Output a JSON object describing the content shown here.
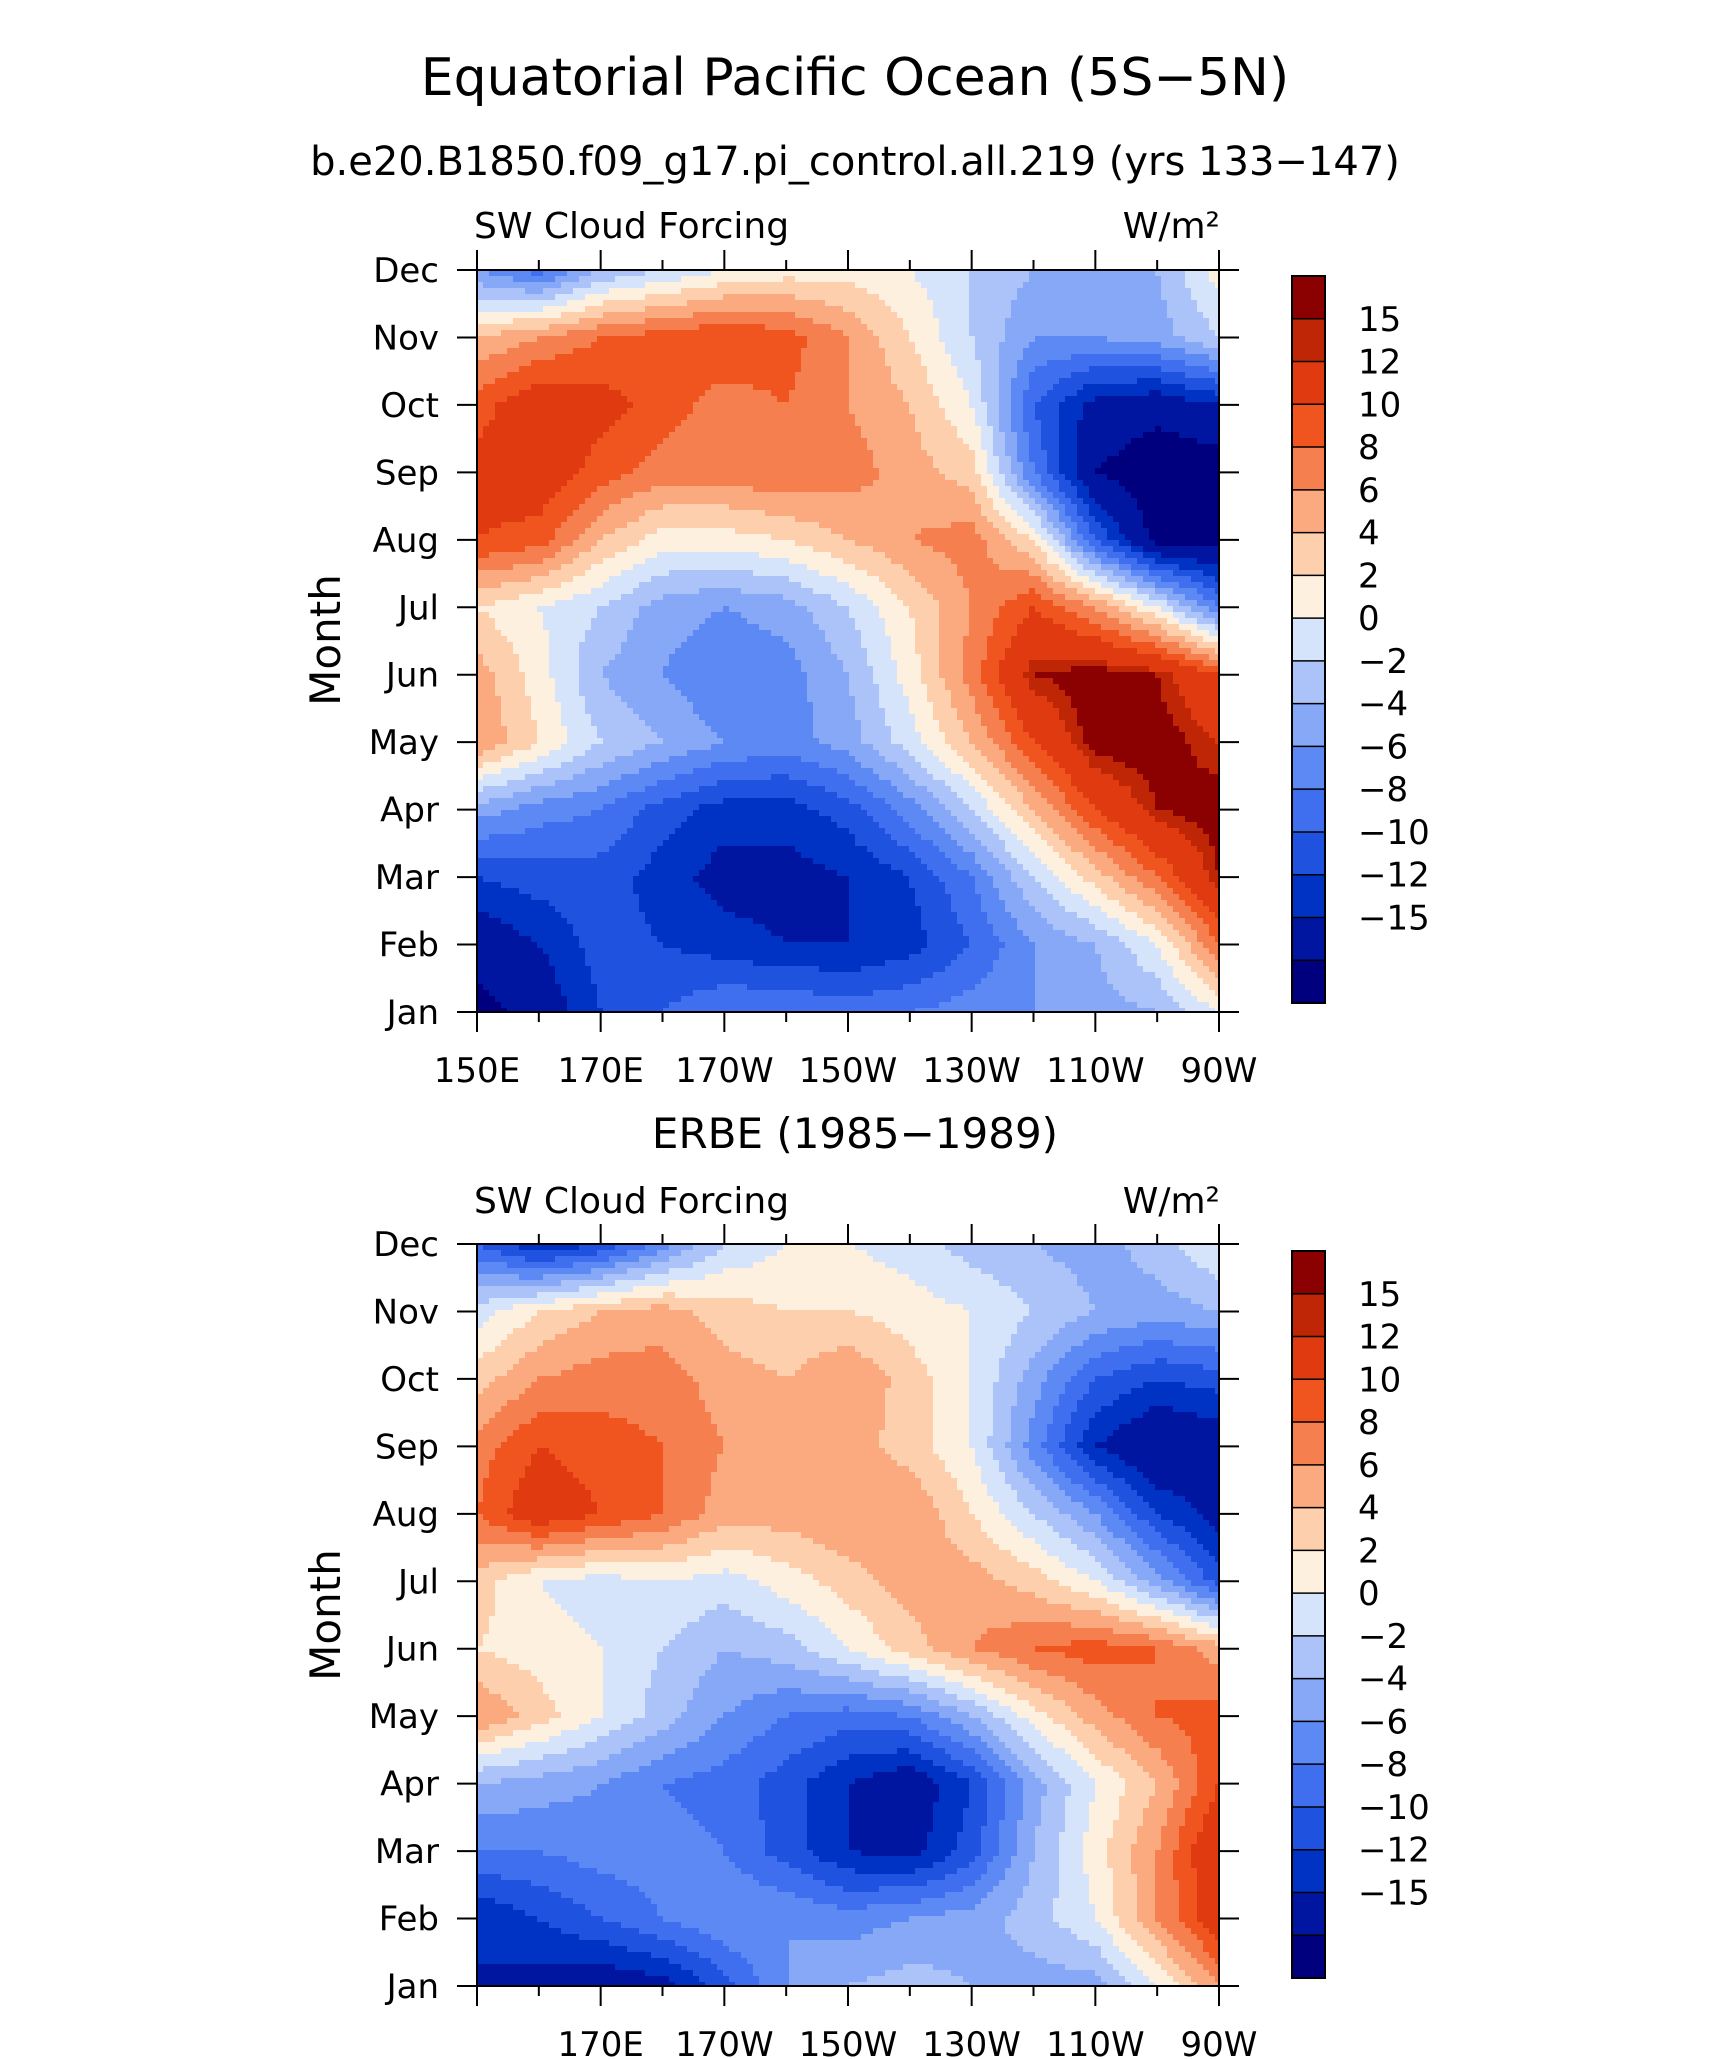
{
  "figure": {
    "title": "Equatorial Pacific Ocean (5S−5N)",
    "subtitle": "b.e20.B1850.f09_g17.pi_control.all.219 (yrs 133−147)",
    "colors": [
      "#00007f",
      "#0016a0",
      "#0033c4",
      "#1f52de",
      "#3f6fee",
      "#5c89f3",
      "#86a8f6",
      "#abc3f8",
      "#d5e4fb",
      "#fdf0df",
      "#fdcfad",
      "#fbaa80",
      "#f67f4f",
      "#f0551f",
      "#e03a10",
      "#bf2605",
      "#8b0000"
    ]
  },
  "chart_data": [
    {
      "type": "heatmap",
      "id": "model",
      "title": "",
      "left_label": "SW Cloud Forcing",
      "right_label": "W/m²",
      "xlabel": "",
      "ylabel": "Month",
      "x_tick_labels": [
        "150E",
        "170E",
        "170W",
        "150W",
        "130W",
        "110W",
        "90W"
      ],
      "x_tick_lons": [
        150,
        170,
        190,
        210,
        230,
        250,
        270
      ],
      "xlim": [
        150,
        270
      ],
      "y_tick_labels": [
        "Jan",
        "Feb",
        "Mar",
        "Apr",
        "May",
        "Jun",
        "Jul",
        "Aug",
        "Sep",
        "Oct",
        "Nov",
        "Dec"
      ],
      "ylim": [
        1,
        12
      ],
      "colorbar": {
        "levels": [
          -16,
          -15,
          -12,
          -10,
          -8,
          -6,
          -4,
          -2,
          0,
          2,
          4,
          6,
          8,
          10,
          12,
          15,
          16
        ],
        "tick_labels": [
          "15",
          "12",
          "10",
          "8",
          "6",
          "4",
          "2",
          "0",
          "−2",
          "−4",
          "−6",
          "−8",
          "−10",
          "−12",
          "−15"
        ]
      },
      "lons": [
        150,
        160,
        170,
        180,
        190,
        200,
        210,
        220,
        230,
        240,
        250,
        260,
        270
      ],
      "months": [
        "Jan",
        "Feb",
        "Mar",
        "Apr",
        "May",
        "Jun",
        "Jul",
        "Aug",
        "Sep",
        "Oct",
        "Nov",
        "Dec"
      ],
      "values": [
        [
          -16,
          -14,
          -10,
          -8,
          -6,
          -6,
          -7,
          -6,
          -5,
          -4,
          -3,
          -2,
          2
        ],
        [
          -14,
          -12,
          -9,
          -10,
          -11,
          -12,
          -12,
          -11,
          -8,
          -4,
          -2,
          2,
          10
        ],
        [
          -10,
          -9,
          -9,
          -11,
          -13,
          -13,
          -12,
          -10,
          -6,
          0,
          5,
          10,
          16
        ],
        [
          -3,
          -5,
          -6,
          -9,
          -11,
          -11,
          -9,
          -5,
          0,
          6,
          12,
          16,
          17
        ],
        [
          8,
          4,
          0,
          -2,
          -4,
          -5,
          -3,
          1,
          6,
          12,
          17,
          17,
          15
        ],
        [
          7,
          3,
          -2,
          -4,
          -6,
          -5,
          -2,
          3,
          9,
          16,
          17,
          16,
          12
        ],
        [
          4,
          2,
          0,
          -3,
          -4,
          -3,
          0,
          4,
          8,
          12,
          8,
          2,
          -6
        ],
        [
          12,
          11,
          6,
          3,
          3,
          4,
          6,
          8,
          9,
          4,
          -8,
          -16,
          -16
        ],
        [
          13,
          14,
          11,
          9,
          9,
          10,
          9,
          7,
          5,
          -6,
          -15,
          -17,
          -17
        ],
        [
          11,
          14,
          13,
          11,
          9,
          10,
          8,
          6,
          2,
          -8,
          -13,
          -14,
          -12
        ],
        [
          6,
          8,
          10,
          11,
          12,
          11,
          8,
          4,
          0,
          -4,
          -4,
          -3,
          0
        ],
        [
          -4,
          -7,
          -2,
          0,
          2,
          3,
          3,
          2,
          0,
          -2,
          -3,
          -2,
          3
        ]
      ]
    },
    {
      "type": "heatmap",
      "id": "erbe",
      "title": "ERBE (1985−1989)",
      "left_label": "SW Cloud Forcing",
      "right_label": "W/m²",
      "xlabel": "",
      "ylabel": "Month",
      "x_tick_labels": [
        "170E",
        "170W",
        "150W",
        "130W",
        "110W",
        "90W"
      ],
      "x_tick_lons": [
        170,
        190,
        210,
        230,
        250,
        270
      ],
      "xlim": [
        150,
        270
      ],
      "y_tick_labels": [
        "Jan",
        "Feb",
        "Mar",
        "Apr",
        "May",
        "Jun",
        "Jul",
        "Aug",
        "Sep",
        "Oct",
        "Nov",
        "Dec"
      ],
      "ylim": [
        1,
        12
      ],
      "colorbar": {
        "levels": [
          -16,
          -15,
          -12,
          -10,
          -8,
          -6,
          -4,
          -2,
          0,
          2,
          4,
          6,
          8,
          10,
          12,
          15,
          16
        ],
        "tick_labels": [
          "15",
          "12",
          "10",
          "8",
          "6",
          "4",
          "2",
          "0",
          "−2",
          "−4",
          "−6",
          "−8",
          "−10",
          "−12",
          "−15"
        ]
      },
      "lons": [
        150,
        160,
        170,
        180,
        190,
        200,
        210,
        220,
        230,
        240,
        250,
        260,
        270
      ],
      "months": [
        "Jan",
        "Feb",
        "Mar",
        "Apr",
        "May",
        "Jun",
        "Jul",
        "Aug",
        "Sep",
        "Oct",
        "Nov",
        "Dec"
      ],
      "values": [
        [
          -12,
          -13,
          -14,
          -13,
          -9,
          -4,
          -2,
          -1,
          -2,
          -3,
          -3,
          2,
          8
        ],
        [
          -12,
          -10,
          -8,
          -6,
          -4,
          -4,
          -5,
          -4,
          -3,
          -1,
          2,
          8,
          14
        ],
        [
          -6,
          -6,
          -5,
          -5,
          -6,
          -9,
          -12,
          -13,
          -9,
          -2,
          3,
          8,
          15
        ],
        [
          -2,
          -3,
          -4,
          -6,
          -7,
          -9,
          -12,
          -14,
          -10,
          -3,
          2,
          6,
          12
        ],
        [
          8,
          5,
          2,
          -1,
          -4,
          -6,
          -7,
          -6,
          -2,
          3,
          7,
          10,
          11
        ],
        [
          4,
          3,
          2,
          0,
          -2,
          -1,
          2,
          5,
          8,
          10,
          11,
          10,
          7
        ],
        [
          5,
          2,
          1,
          2,
          1,
          3,
          5,
          7,
          7,
          5,
          2,
          -3,
          -9
        ],
        [
          10,
          14,
          12,
          10,
          7,
          7,
          8,
          8,
          4,
          0,
          -4,
          -10,
          -13
        ],
        [
          9,
          12,
          11,
          10,
          8,
          8,
          7,
          5,
          2,
          -5,
          -12,
          -15,
          -14
        ],
        [
          5,
          8,
          9,
          9,
          7,
          6,
          8,
          5,
          2,
          -3,
          -8,
          -10,
          -9
        ],
        [
          1,
          4,
          6,
          7,
          5,
          4,
          4,
          3,
          2,
          0,
          -2,
          -3,
          -2
        ],
        [
          -8,
          -12,
          -10,
          -5,
          0,
          2,
          2,
          1,
          -1,
          -2,
          -3,
          -1,
          2
        ]
      ]
    }
  ]
}
